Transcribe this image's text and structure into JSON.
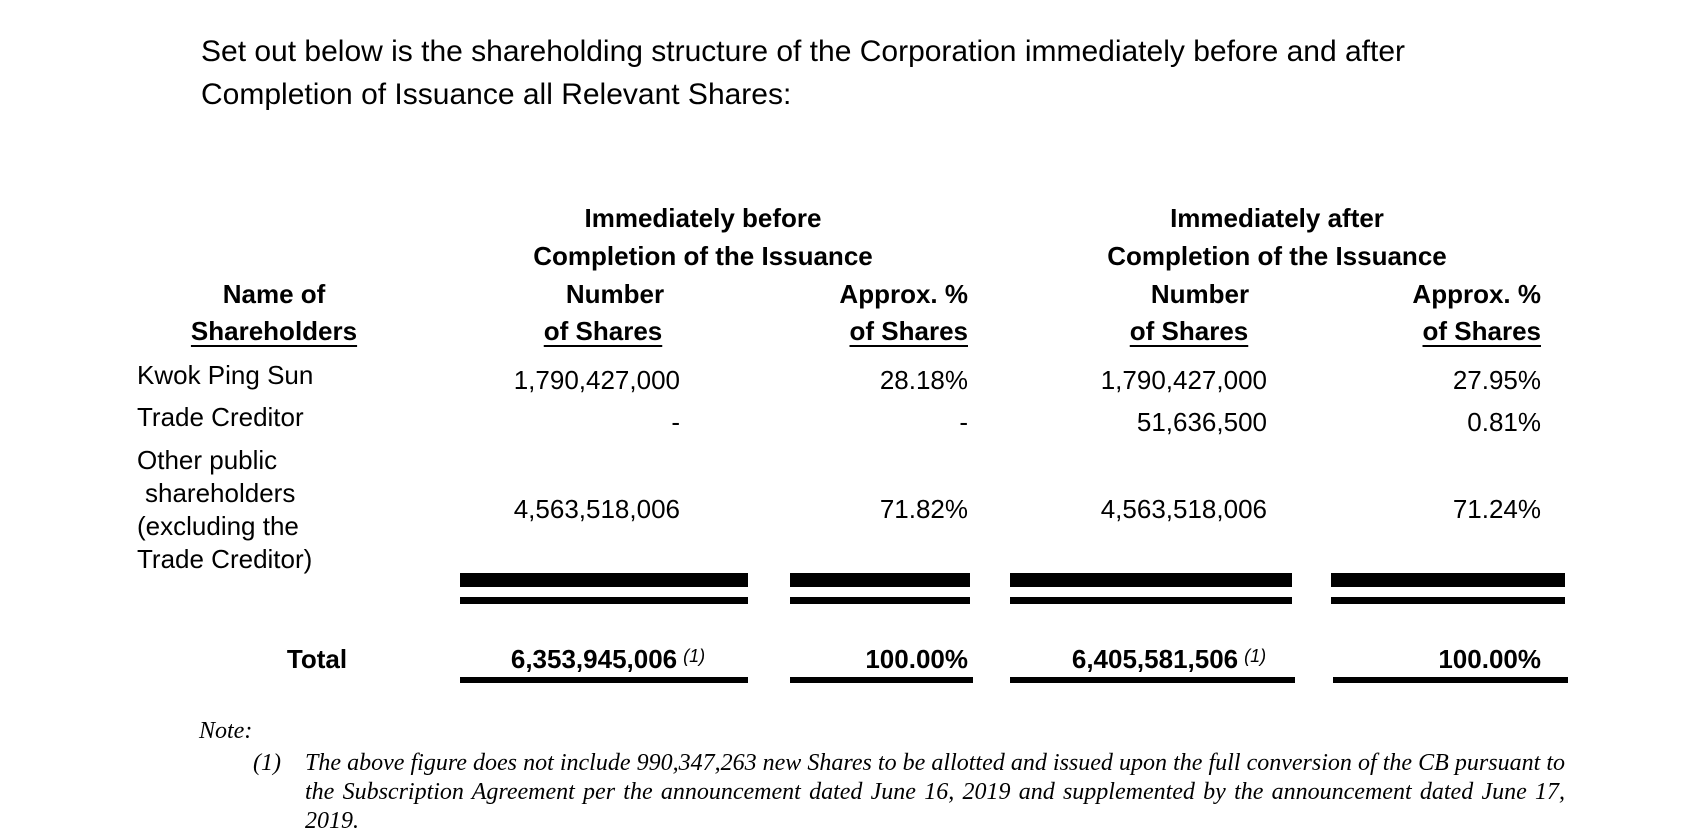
{
  "intro": "Set out below is the shareholding structure of the Corporation immediately before and after Completion of Issuance all Relevant Shares:",
  "table": {
    "group_headers": [
      {
        "line1": "Immediately before",
        "line2": "Completion of the Issuance"
      },
      {
        "line1": "Immediately after",
        "line2": "Completion of the Issuance"
      }
    ],
    "column_headers": {
      "name": {
        "line1": "Name of",
        "line2": "Shareholders"
      },
      "before_number": {
        "line1": "Number",
        "line2": "of Shares"
      },
      "before_pct": {
        "line1": "Approx. %",
        "line2": "of Shares"
      },
      "after_number": {
        "line1": "Number",
        "line2": "of Shares"
      },
      "after_pct": {
        "line1": "Approx. %",
        "line2": "of Shares"
      }
    },
    "rows": [
      {
        "name_lines": [
          "Kwok Ping Sun"
        ],
        "before_number": "1,790,427,000",
        "before_pct": "28.18%",
        "after_number": "1,790,427,000",
        "after_pct": "27.95%"
      },
      {
        "name_lines": [
          "Trade Creditor"
        ],
        "before_number": "-",
        "before_pct": "-",
        "after_number": "51,636,500",
        "after_pct": "0.81%"
      },
      {
        "name_lines": [
          "Other public",
          "shareholders",
          "(excluding the",
          "Trade Creditor)"
        ],
        "before_number": "4,563,518,006",
        "before_pct": "71.82%",
        "after_number": "4,563,518,006",
        "after_pct": "71.24%"
      }
    ],
    "total": {
      "label": "Total",
      "before_number": "6,353,945,006",
      "before_note": "(1)",
      "before_pct": "100.00%",
      "after_number": "6,405,581,506",
      "after_note": "(1)",
      "after_pct": "100.00%"
    }
  },
  "note": {
    "label": "Note:",
    "items": [
      {
        "num": "(1)",
        "text": "The above figure does not include 990,347,263 new Shares to be allotted and issued upon the full conversion of the CB pursuant to the Subscription Agreement per the announcement dated June 16, 2019 and supplemented by the announcement dated June 17, 2019."
      }
    ]
  }
}
